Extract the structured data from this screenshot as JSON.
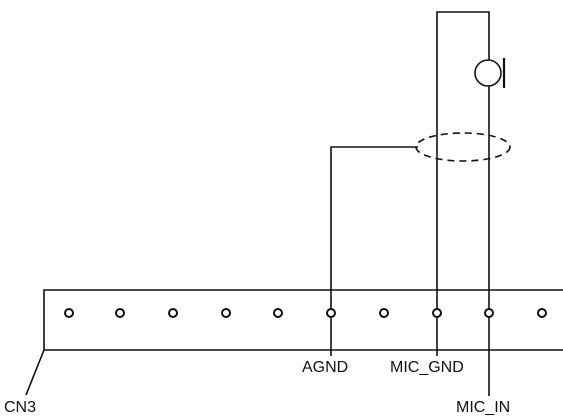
{
  "connector": {
    "name": "CN3",
    "pin_count": 10
  },
  "signals": {
    "agnd": "AGND",
    "mic_gnd": "MIC_GND",
    "mic_in": "MIC_IN"
  },
  "components": {
    "microphone": "microphone-symbol",
    "shield": "cable-shield-ellipse"
  },
  "colors": {
    "line": "#111111",
    "background": "#ffffff"
  }
}
